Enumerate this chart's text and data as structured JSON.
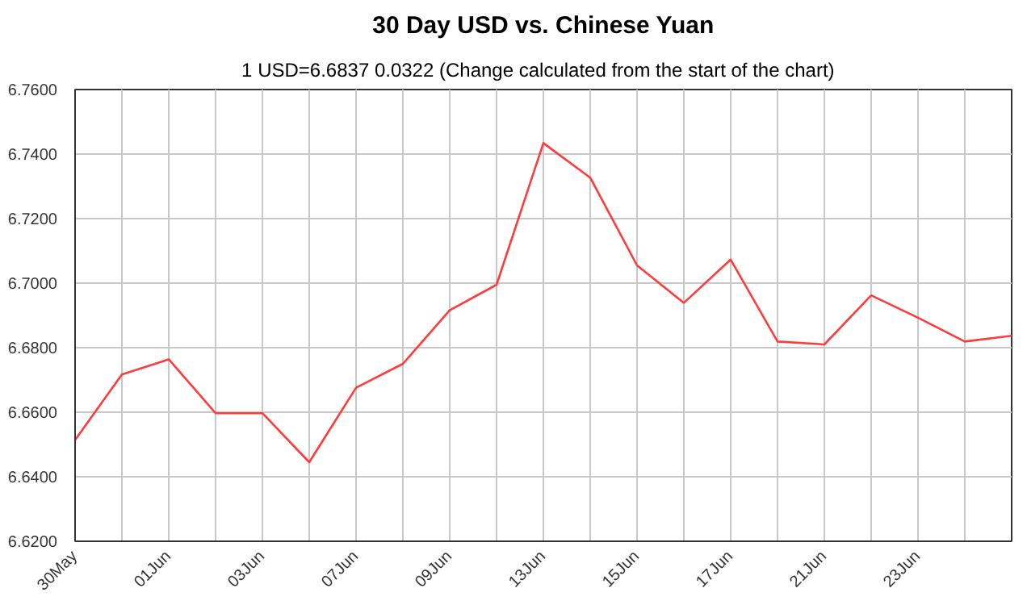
{
  "chart_data": {
    "type": "line",
    "title": "30 Day USD vs. Chinese Yuan",
    "subtitle": "1 USD=6.6837  0.0322  (Change calculated from the start of the chart)",
    "categories": [
      "30May",
      null,
      "01Jun",
      null,
      "03Jun",
      null,
      "07Jun",
      null,
      "09Jun",
      null,
      "13Jun",
      null,
      "15Jun",
      null,
      "17Jun",
      null,
      "21Jun",
      null,
      "23Jun",
      null,
      null
    ],
    "series": [
      {
        "color": "#ff3b3b",
        "values": [
          6.6514,
          6.6717,
          6.6764,
          6.6597,
          6.6597,
          6.6445,
          6.6676,
          6.675,
          6.6916,
          6.6995,
          6.7434,
          6.7327,
          6.7055,
          6.6939,
          6.7073,
          6.6819,
          6.681,
          6.6962,
          6.6893,
          6.6819,
          6.6837
        ]
      }
    ],
    "ylim": [
      6.62,
      6.76
    ],
    "yticks": [
      {
        "value": 6.62,
        "label": "6.6200"
      },
      {
        "value": 6.64,
        "label": "6.6400"
      },
      {
        "value": 6.66,
        "label": "6.6600"
      },
      {
        "value": 6.68,
        "label": "6.6800"
      },
      {
        "value": 6.7,
        "label": "6.7000"
      },
      {
        "value": 6.72,
        "label": "6.7200"
      },
      {
        "value": 6.74,
        "label": "6.7400"
      },
      {
        "value": 6.76,
        "label": "6.7600"
      }
    ],
    "grid": true,
    "marker": "none",
    "line_style": "solid"
  }
}
